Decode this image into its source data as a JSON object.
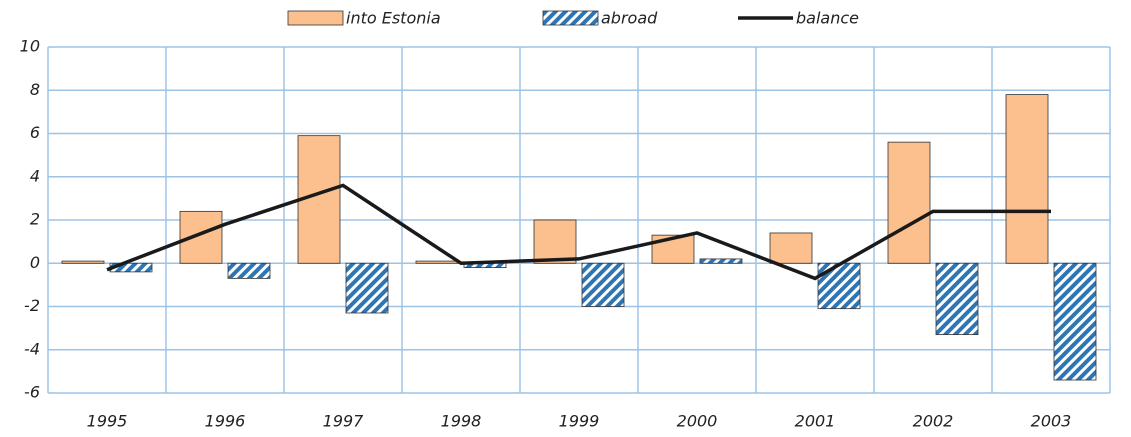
{
  "chart_data": {
    "type": "bar",
    "categories": [
      "1995",
      "1996",
      "1997",
      "1998",
      "1999",
      "2000",
      "2001",
      "2002",
      "2003"
    ],
    "series": [
      {
        "name": "into Estonia",
        "type": "bar",
        "color": "#fcbf8e",
        "values": [
          0.1,
          2.4,
          5.9,
          0.1,
          2.0,
          1.3,
          1.4,
          5.6,
          7.8
        ]
      },
      {
        "name": "abroad",
        "type": "bar",
        "pattern": "hatch",
        "color": "#2e75b6",
        "values": [
          -0.4,
          -0.7,
          -2.3,
          -0.2,
          -2.0,
          0.2,
          -2.1,
          -3.3,
          -5.4
        ]
      },
      {
        "name": "balance",
        "type": "line",
        "color": "#1a1a1a",
        "values": [
          -0.3,
          1.8,
          3.6,
          0.0,
          0.2,
          1.4,
          -0.7,
          2.4,
          2.4
        ]
      }
    ],
    "ylim": [
      -6,
      10
    ],
    "yticks": [
      -6,
      -4,
      -2,
      0,
      2,
      4,
      6,
      8,
      10
    ],
    "grid": true,
    "legend": "top"
  }
}
